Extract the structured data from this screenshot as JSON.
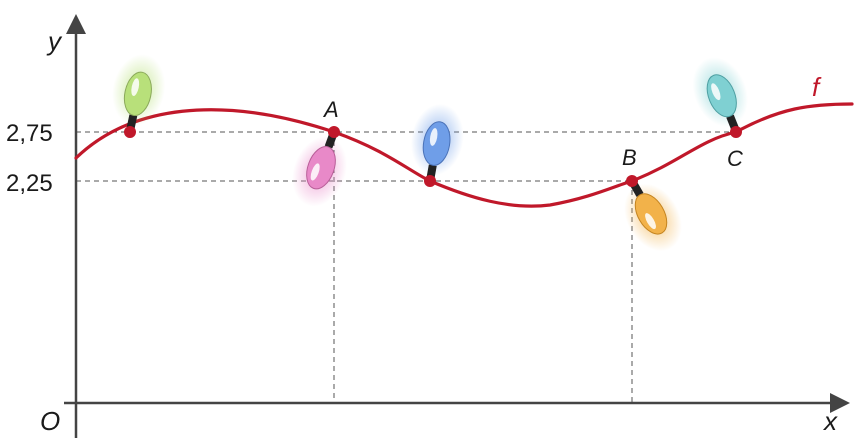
{
  "figure": {
    "axes": {
      "x_label": "x",
      "y_label": "y",
      "origin_label": "O"
    },
    "y_ticks": [
      "2,75",
      "2,25"
    ],
    "function_label": "f",
    "points": [
      {
        "name": "A"
      },
      {
        "name": "B"
      },
      {
        "name": "C"
      }
    ],
    "colors": {
      "curve": "#c0182a",
      "point": "#c0182a",
      "axis": "#444444",
      "guide": "#555555"
    },
    "bulbs": [
      {
        "icon": "light-bulb-icon",
        "color": "#b8e07a"
      },
      {
        "icon": "light-bulb-icon",
        "color": "#e889c8"
      },
      {
        "icon": "light-bulb-icon",
        "color": "#6f9ee8"
      },
      {
        "icon": "light-bulb-icon",
        "color": "#f2b24a"
      },
      {
        "icon": "light-bulb-icon",
        "color": "#7fd0d2"
      }
    ]
  }
}
